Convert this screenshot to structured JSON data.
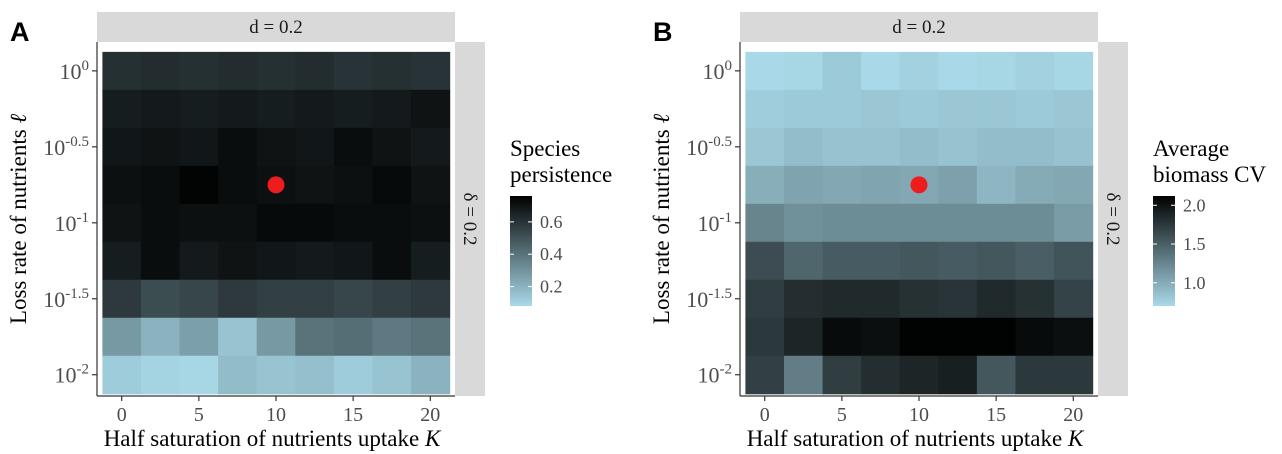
{
  "chart_data": [
    {
      "type": "heatmap",
      "panel_label": "A",
      "strip_top": "d = 0.2",
      "strip_right": "δ = 0.2",
      "xlabel": "Half saturation of nutrients uptake K",
      "ylabel": "Loss rate of nutrients ℓ",
      "x_ticks": [
        "0",
        "5",
        "10",
        "15",
        "20"
      ],
      "x_tick_values": [
        0,
        5,
        10,
        15,
        20
      ],
      "y_ticks": [
        {
          "base": "10",
          "exp": "0"
        },
        {
          "base": "10",
          "exp": "-0.5"
        },
        {
          "base": "10",
          "exp": "-1"
        },
        {
          "base": "10",
          "exp": "-1.5"
        },
        {
          "base": "10",
          "exp": "-2"
        }
      ],
      "y_tick_values": [
        0,
        -0.5,
        -1,
        -1.5,
        -2
      ],
      "x_cells": [
        0,
        2.5,
        5,
        7.5,
        10,
        12.5,
        15,
        17.5,
        20
      ],
      "y_cells_log10": [
        0,
        -0.25,
        -0.5,
        -0.75,
        -1,
        -1.25,
        -1.5,
        -1.75,
        -2
      ],
      "xlim": [
        -1.6,
        21.6
      ],
      "ylim_log10": [
        -2.14,
        0.19
      ],
      "legend_title": [
        "Species",
        "persistence"
      ],
      "legend_ticks": [
        "0.6",
        "0.4",
        "0.2"
      ],
      "legend_tick_values": [
        0.6,
        0.4,
        0.2
      ],
      "color_range": [
        0.08,
        0.76
      ],
      "color_low": "#a9d9e8",
      "color_high": "#000000",
      "values": [
        [
          0.61,
          0.62,
          0.61,
          0.62,
          0.61,
          0.62,
          0.6,
          0.61,
          0.6
        ],
        [
          0.67,
          0.68,
          0.67,
          0.68,
          0.67,
          0.68,
          0.67,
          0.68,
          0.7
        ],
        [
          0.69,
          0.7,
          0.69,
          0.72,
          0.7,
          0.69,
          0.72,
          0.7,
          0.68
        ],
        [
          0.71,
          0.72,
          0.75,
          0.72,
          0.71,
          0.7,
          0.71,
          0.73,
          0.7
        ],
        [
          0.7,
          0.72,
          0.71,
          0.71,
          0.73,
          0.73,
          0.72,
          0.72,
          0.71
        ],
        [
          0.67,
          0.72,
          0.68,
          0.7,
          0.69,
          0.68,
          0.69,
          0.72,
          0.67
        ],
        [
          0.58,
          0.52,
          0.54,
          0.58,
          0.56,
          0.56,
          0.54,
          0.56,
          0.58
        ],
        [
          0.28,
          0.2,
          0.26,
          0.15,
          0.28,
          0.4,
          0.42,
          0.38,
          0.4
        ],
        [
          0.12,
          0.1,
          0.09,
          0.17,
          0.15,
          0.16,
          0.12,
          0.15,
          0.2
        ]
      ],
      "highlight_point": {
        "x": 10,
        "y_log10": -0.75,
        "color": "#ee1c1c"
      }
    },
    {
      "type": "heatmap",
      "panel_label": "B",
      "strip_top": "d = 0.2",
      "strip_right": "δ = 0.2",
      "xlabel": "Half saturation of nutrients uptake K",
      "ylabel": "Loss rate of nutrients ℓ",
      "x_ticks": [
        "0",
        "5",
        "10",
        "15",
        "20"
      ],
      "x_tick_values": [
        0,
        5,
        10,
        15,
        20
      ],
      "y_ticks": [
        {
          "base": "10",
          "exp": "0"
        },
        {
          "base": "10",
          "exp": "-0.5"
        },
        {
          "base": "10",
          "exp": "-1"
        },
        {
          "base": "10",
          "exp": "-1.5"
        },
        {
          "base": "10",
          "exp": "-2"
        }
      ],
      "y_tick_values": [
        0,
        -0.5,
        -1,
        -1.5,
        -2
      ],
      "x_cells": [
        0,
        2.5,
        5,
        7.5,
        10,
        12.5,
        15,
        17.5,
        20
      ],
      "y_cells_log10": [
        0,
        -0.25,
        -0.5,
        -0.75,
        -1,
        -1.25,
        -1.5,
        -1.75,
        -2
      ],
      "xlim": [
        -1.6,
        21.6
      ],
      "ylim_log10": [
        -2.14,
        0.19
      ],
      "legend_title": [
        "Average",
        "biomass CV"
      ],
      "legend_ticks": [
        "2.0",
        "1.5",
        "1.0"
      ],
      "legend_tick_values": [
        2.0,
        1.5,
        1.0
      ],
      "color_range": [
        0.7,
        2.12
      ],
      "color_low": "#a9d9e8",
      "color_high": "#000000",
      "values": [
        [
          0.7,
          0.72,
          0.8,
          0.7,
          0.75,
          0.7,
          0.72,
          0.75,
          0.72
        ],
        [
          0.78,
          0.8,
          0.8,
          0.82,
          0.8,
          0.82,
          0.82,
          0.8,
          0.82
        ],
        [
          0.82,
          0.88,
          0.85,
          0.85,
          0.88,
          0.85,
          0.88,
          0.88,
          0.85
        ],
        [
          0.98,
          1.05,
          1.02,
          1.04,
          1.02,
          1.07,
          0.93,
          1.0,
          1.02
        ],
        [
          1.25,
          1.18,
          1.2,
          1.2,
          1.2,
          1.2,
          1.2,
          1.2,
          1.1
        ],
        [
          1.62,
          1.45,
          1.52,
          1.52,
          1.55,
          1.52,
          1.55,
          1.5,
          1.57
        ],
        [
          1.72,
          1.82,
          1.85,
          1.85,
          1.8,
          1.78,
          1.85,
          1.8,
          1.68
        ],
        [
          1.75,
          1.88,
          2.05,
          2.02,
          2.11,
          2.11,
          2.11,
          2.05,
          2.02
        ],
        [
          1.7,
          1.3,
          1.72,
          1.82,
          1.88,
          1.92,
          1.55,
          1.75,
          1.75
        ]
      ],
      "highlight_point": {
        "x": 10,
        "y_log10": -0.75,
        "color": "#ee1c1c"
      }
    }
  ]
}
